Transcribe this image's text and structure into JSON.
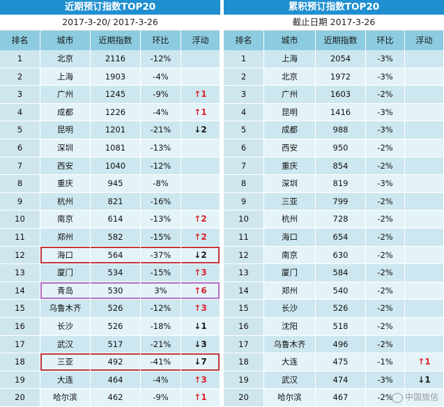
{
  "left": {
    "title": "近期预订指数TOP20",
    "date": "2017-3-20/ 2017-3-26",
    "headers": [
      "排名",
      "城市",
      "近期指数",
      "环比",
      "浮动"
    ],
    "rows": [
      {
        "rank": "1",
        "city": "北京",
        "index": "2116",
        "change": "-12%",
        "float": "",
        "dir": ""
      },
      {
        "rank": "2",
        "city": "上海",
        "index": "1903",
        "change": "-4%",
        "float": "",
        "dir": ""
      },
      {
        "rank": "3",
        "city": "广州",
        "index": "1245",
        "change": "-9%",
        "float": "↑1",
        "dir": "up"
      },
      {
        "rank": "4",
        "city": "成都",
        "index": "1226",
        "change": "-4%",
        "float": "↑1",
        "dir": "up"
      },
      {
        "rank": "5",
        "city": "昆明",
        "index": "1201",
        "change": "-21%",
        "float": "↓2",
        "dir": "down"
      },
      {
        "rank": "6",
        "city": "深圳",
        "index": "1081",
        "change": "-13%",
        "float": "",
        "dir": ""
      },
      {
        "rank": "7",
        "city": "西安",
        "index": "1040",
        "change": "-12%",
        "float": "",
        "dir": ""
      },
      {
        "rank": "8",
        "city": "重庆",
        "index": "945",
        "change": "-8%",
        "float": "",
        "dir": ""
      },
      {
        "rank": "9",
        "city": "杭州",
        "index": "821",
        "change": "-16%",
        "float": "",
        "dir": ""
      },
      {
        "rank": "10",
        "city": "南京",
        "index": "614",
        "change": "-13%",
        "float": "↑2",
        "dir": "up"
      },
      {
        "rank": "11",
        "city": "郑州",
        "index": "582",
        "change": "-15%",
        "float": "↑2",
        "dir": "up"
      },
      {
        "rank": "12",
        "city": "海口",
        "index": "564",
        "change": "-37%",
        "float": "↓2",
        "dir": "down",
        "hl": "red"
      },
      {
        "rank": "13",
        "city": "厦门",
        "index": "534",
        "change": "-15%",
        "float": "↑3",
        "dir": "up"
      },
      {
        "rank": "14",
        "city": "青岛",
        "index": "530",
        "change": "3%",
        "float": "↑6",
        "dir": "up",
        "hl": "purple"
      },
      {
        "rank": "15",
        "city": "乌鲁木齐",
        "index": "526",
        "change": "-12%",
        "float": "↑3",
        "dir": "up"
      },
      {
        "rank": "16",
        "city": "长沙",
        "index": "526",
        "change": "-18%",
        "float": "↓1",
        "dir": "down"
      },
      {
        "rank": "17",
        "city": "武汉",
        "index": "517",
        "change": "-21%",
        "float": "↓3",
        "dir": "down"
      },
      {
        "rank": "18",
        "city": "三亚",
        "index": "492",
        "change": "-41%",
        "float": "↓7",
        "dir": "down",
        "hl": "red"
      },
      {
        "rank": "19",
        "city": "大连",
        "index": "464",
        "change": "-4%",
        "float": "↑3",
        "dir": "up"
      },
      {
        "rank": "20",
        "city": "哈尔滨",
        "index": "462",
        "change": "-9%",
        "float": "↑1",
        "dir": "up"
      }
    ]
  },
  "right": {
    "title": "累积预订指数TOP20",
    "date": "截止日期 2017-3-26",
    "headers": [
      "排名",
      "城市",
      "近期指数",
      "环比",
      "浮动"
    ],
    "rows": [
      {
        "rank": "1",
        "city": "上海",
        "index": "2054",
        "change": "-3%",
        "float": "",
        "dir": ""
      },
      {
        "rank": "2",
        "city": "北京",
        "index": "1972",
        "change": "-3%",
        "float": "",
        "dir": ""
      },
      {
        "rank": "3",
        "city": "广州",
        "index": "1603",
        "change": "-2%",
        "float": "",
        "dir": ""
      },
      {
        "rank": "4",
        "city": "昆明",
        "index": "1416",
        "change": "-3%",
        "float": "",
        "dir": ""
      },
      {
        "rank": "5",
        "city": "成都",
        "index": "988",
        "change": "-3%",
        "float": "",
        "dir": ""
      },
      {
        "rank": "6",
        "city": "西安",
        "index": "950",
        "change": "-2%",
        "float": "",
        "dir": ""
      },
      {
        "rank": "7",
        "city": "重庆",
        "index": "854",
        "change": "-2%",
        "float": "",
        "dir": ""
      },
      {
        "rank": "8",
        "city": "深圳",
        "index": "819",
        "change": "-3%",
        "float": "",
        "dir": ""
      },
      {
        "rank": "9",
        "city": "三亚",
        "index": "799",
        "change": "-2%",
        "float": "",
        "dir": ""
      },
      {
        "rank": "10",
        "city": "杭州",
        "index": "728",
        "change": "-2%",
        "float": "",
        "dir": ""
      },
      {
        "rank": "11",
        "city": "海口",
        "index": "654",
        "change": "-2%",
        "float": "",
        "dir": ""
      },
      {
        "rank": "12",
        "city": "南京",
        "index": "630",
        "change": "-2%",
        "float": "",
        "dir": ""
      },
      {
        "rank": "13",
        "city": "厦门",
        "index": "584",
        "change": "-2%",
        "float": "",
        "dir": ""
      },
      {
        "rank": "14",
        "city": "郑州",
        "index": "540",
        "change": "-2%",
        "float": "",
        "dir": ""
      },
      {
        "rank": "15",
        "city": "长沙",
        "index": "526",
        "change": "-2%",
        "float": "",
        "dir": ""
      },
      {
        "rank": "16",
        "city": "沈阳",
        "index": "518",
        "change": "-2%",
        "float": "",
        "dir": ""
      },
      {
        "rank": "17",
        "city": "乌鲁木齐",
        "index": "496",
        "change": "-2%",
        "float": "",
        "dir": ""
      },
      {
        "rank": "18",
        "city": "大连",
        "index": "475",
        "change": "-1%",
        "float": "↑1",
        "dir": "up"
      },
      {
        "rank": "19",
        "city": "武汉",
        "index": "474",
        "change": "-3%",
        "float": "↓1",
        "dir": "down"
      },
      {
        "rank": "20",
        "city": "哈尔滨",
        "index": "467",
        "change": "-2%",
        "float": "",
        "dir": ""
      }
    ]
  },
  "watermark": "中国旅信",
  "colors": {
    "title_bg": "#1f8fd0",
    "header_bg": "#8ccbe0",
    "up": "#d9222a",
    "down": "#1a1a1a",
    "hl_red": "#c0343c",
    "hl_purple": "#b36cc7"
  }
}
